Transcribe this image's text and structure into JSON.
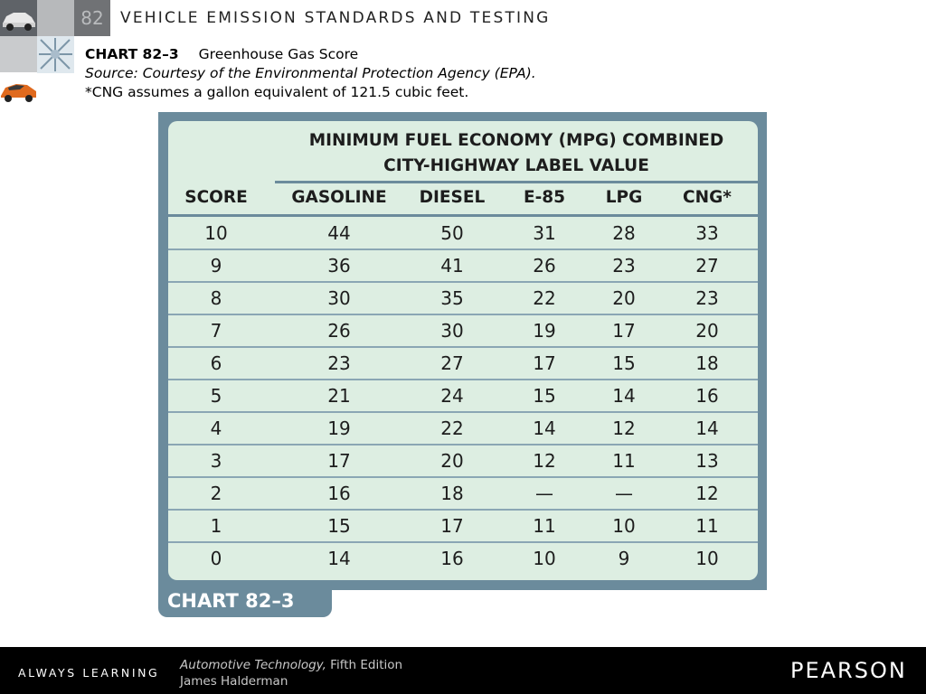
{
  "header": {
    "chapter_number": "82",
    "running_title": "VEHICLE EMISSION STANDARDS AND TESTING"
  },
  "caption": {
    "label": "CHART 82–3",
    "title": "Greenhouse Gas Score",
    "source": "Source: Courtesy of the Environmental Protection Agency (EPA).",
    "note": "*CNG assumes a gallon equivalent of 121.5 cubic feet."
  },
  "chart_data": {
    "type": "table",
    "title": "MINIMUM FUEL ECONOMY (MPG) COMBINED",
    "subtitle": "CITY-HIGHWAY LABEL VALUE",
    "columns": [
      "SCORE",
      "GASOLINE",
      "DIESEL",
      "E-85",
      "LPG",
      "CNG*"
    ],
    "rows": [
      [
        "10",
        "44",
        "50",
        "31",
        "28",
        "33"
      ],
      [
        "9",
        "36",
        "41",
        "26",
        "23",
        "27"
      ],
      [
        "8",
        "30",
        "35",
        "22",
        "20",
        "23"
      ],
      [
        "7",
        "26",
        "30",
        "19",
        "17",
        "20"
      ],
      [
        "6",
        "23",
        "27",
        "17",
        "15",
        "18"
      ],
      [
        "5",
        "21",
        "24",
        "15",
        "14",
        "16"
      ],
      [
        "4",
        "19",
        "22",
        "14",
        "12",
        "14"
      ],
      [
        "3",
        "17",
        "20",
        "12",
        "11",
        "13"
      ],
      [
        "2",
        "16",
        "18",
        "—",
        "—",
        "12"
      ],
      [
        "1",
        "15",
        "17",
        "11",
        "10",
        "11"
      ],
      [
        "0",
        "14",
        "16",
        "10",
        "9",
        "10"
      ]
    ],
    "tab_label": "CHART 82–3"
  },
  "footer": {
    "tagline": "ALWAYS LEARNING",
    "book_title": "Automotive Technology,",
    "edition": "Fifth Edition",
    "author": "James Halderman",
    "publisher": "PEARSON"
  }
}
